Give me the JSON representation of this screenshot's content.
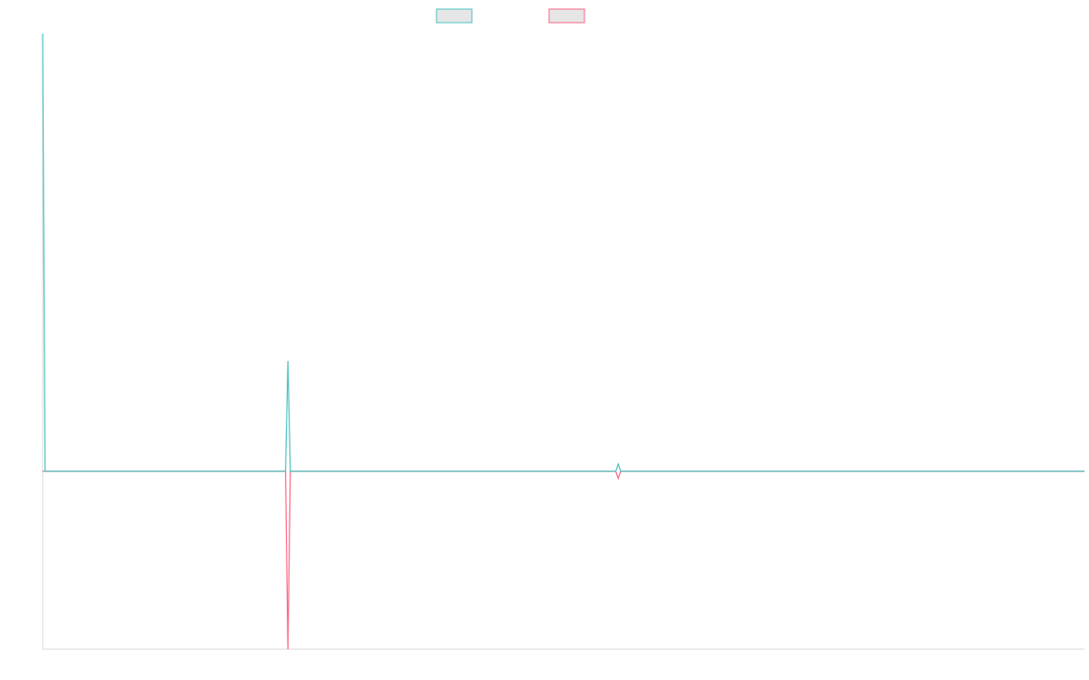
{
  "chart_data": {
    "type": "line",
    "title": "",
    "xlabel": "",
    "ylabel": "",
    "grid": false,
    "legend_position": "top-center",
    "x": [
      0,
      1,
      2,
      3,
      4,
      5,
      6,
      7,
      8,
      9,
      10,
      11,
      12,
      13,
      14,
      15,
      16,
      17,
      18,
      19,
      20,
      21,
      22,
      23,
      24,
      25,
      26,
      27,
      28,
      29,
      30,
      31,
      32,
      33,
      34,
      35,
      36,
      37,
      38,
      39,
      40,
      41,
      42,
      43,
      44,
      45,
      46,
      47,
      48,
      49,
      50,
      51,
      52,
      53,
      54,
      55,
      56,
      57,
      58,
      59,
      60,
      61,
      62,
      63,
      64,
      65,
      66,
      67,
      68,
      69,
      70,
      71,
      72,
      73,
      74,
      75,
      76,
      77,
      78,
      79,
      80,
      81,
      82,
      83,
      84,
      85,
      86,
      87,
      88,
      89,
      90,
      91,
      92,
      93,
      94,
      95,
      96,
      97,
      98,
      99,
      100,
      101,
      102,
      103,
      104,
      105,
      106,
      107,
      108,
      109,
      110,
      111,
      112,
      113,
      114,
      115,
      116,
      117,
      118,
      119,
      120,
      121,
      122,
      123,
      124,
      125,
      126,
      127,
      128,
      129,
      130,
      131,
      132,
      133,
      134,
      135,
      136,
      137,
      138,
      139,
      140,
      141,
      142,
      143,
      144,
      145,
      146,
      147,
      148,
      149,
      150,
      151,
      152,
      153,
      154,
      155,
      156,
      157,
      158,
      159,
      160,
      161,
      162,
      163,
      164,
      165,
      166,
      167,
      168,
      169,
      170,
      171,
      172,
      173,
      174,
      175,
      176,
      177,
      178,
      179,
      180,
      181,
      182,
      183,
      184,
      185,
      186,
      187,
      188,
      189,
      190,
      191,
      192,
      193,
      194,
      195,
      196,
      197,
      198,
      199,
      200,
      201,
      202,
      203,
      204,
      205,
      206,
      207,
      208,
      209,
      210,
      211,
      212,
      213,
      214,
      215,
      216,
      217,
      218,
      219,
      220,
      221,
      222,
      223,
      224,
      225,
      226,
      227,
      228,
      229,
      230,
      231,
      232,
      233,
      234,
      235,
      236,
      237,
      238,
      239,
      240,
      241,
      242,
      243,
      244,
      245,
      246,
      247,
      248,
      249,
      250,
      251,
      252,
      253,
      254,
      255,
      256,
      257,
      258,
      259,
      260,
      261,
      262,
      263,
      264,
      265,
      266,
      267,
      268,
      269,
      270,
      271,
      272,
      273,
      274,
      275,
      276,
      277,
      278,
      279,
      280,
      281,
      282,
      283,
      284,
      285,
      286,
      287,
      288,
      289,
      290,
      291,
      292,
      293,
      294,
      295,
      296,
      297,
      298,
      299,
      300,
      301,
      302,
      303,
      304,
      305,
      306,
      307,
      308,
      309,
      310,
      311,
      312,
      313,
      314,
      315,
      316,
      317,
      318,
      319,
      320,
      321,
      322,
      323,
      324,
      325,
      326,
      327,
      328,
      329,
      330,
      331,
      332,
      333,
      334,
      335,
      336,
      337,
      338,
      339,
      340,
      341,
      342,
      343,
      344,
      345,
      346,
      347,
      348,
      349,
      350,
      351,
      352,
      353,
      354,
      355,
      356,
      357,
      358,
      359,
      360,
      361,
      362,
      363,
      364,
      365,
      366,
      367,
      368,
      369,
      370,
      371,
      372,
      373,
      374,
      375,
      376,
      377,
      378,
      379,
      380,
      381,
      382,
      383,
      384,
      385,
      386,
      387,
      388,
      389,
      390,
      391,
      392,
      393,
      394,
      395,
      396,
      397,
      398,
      399,
      400,
      401,
      402,
      403,
      404,
      405,
      406,
      407,
      408,
      409,
      410,
      411,
      412,
      413,
      414,
      415,
      416,
      417,
      418,
      419,
      420,
      421,
      422,
      423,
      424,
      425,
      426,
      427,
      428,
      429
    ],
    "ylim": [
      -100,
      246
    ],
    "series": [
      {
        "color": "#4bc0c0",
        "points": [
          [
            0,
            246
          ],
          [
            1,
            0
          ],
          [
            100,
            0
          ],
          [
            101,
            62
          ],
          [
            102,
            0
          ],
          [
            236,
            0
          ],
          [
            237,
            4
          ],
          [
            238,
            0
          ],
          [
            429,
            0
          ]
        ]
      },
      {
        "color": "#ff6384",
        "points": [
          [
            0,
            0
          ],
          [
            100,
            0
          ],
          [
            101,
            -100
          ],
          [
            102,
            0
          ],
          [
            236,
            0
          ],
          [
            237,
            -4
          ],
          [
            238,
            0
          ],
          [
            429,
            0
          ]
        ]
      }
    ]
  }
}
